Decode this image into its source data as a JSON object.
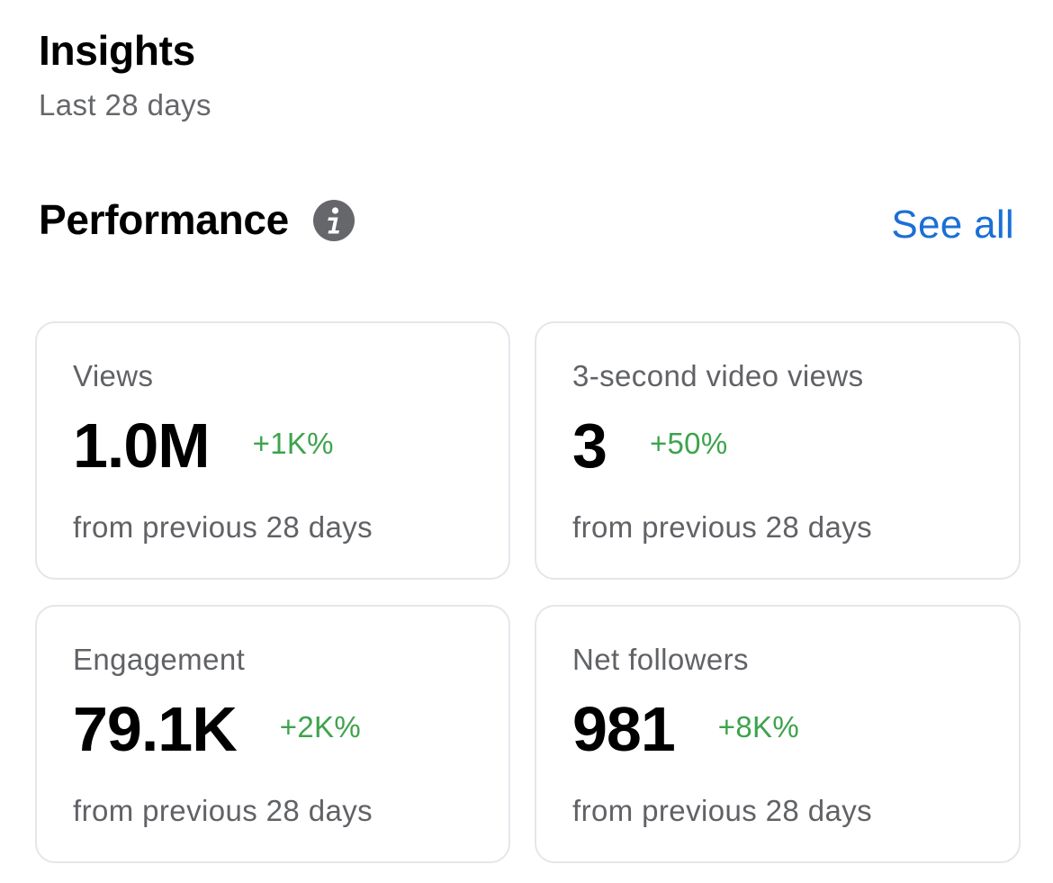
{
  "header": {
    "title": "Insights",
    "subtitle": "Last 28 days"
  },
  "performance": {
    "title": "Performance",
    "info_icon": "info-icon",
    "see_all_label": "See all",
    "accent_color": "#1b6fd6",
    "positive_color": "#3da34d"
  },
  "cards": [
    {
      "label": "Views",
      "value": "1.0M",
      "change": "+1K%",
      "footnote": "from previous 28 days"
    },
    {
      "label": "3-second video views",
      "value": "3",
      "change": "+50%",
      "footnote": "from previous 28 days"
    },
    {
      "label": "Engagement",
      "value": "79.1K",
      "change": "+2K%",
      "footnote": "from previous 28 days"
    },
    {
      "label": "Net followers",
      "value": "981",
      "change": "+8K%",
      "footnote": "from previous 28 days"
    }
  ]
}
